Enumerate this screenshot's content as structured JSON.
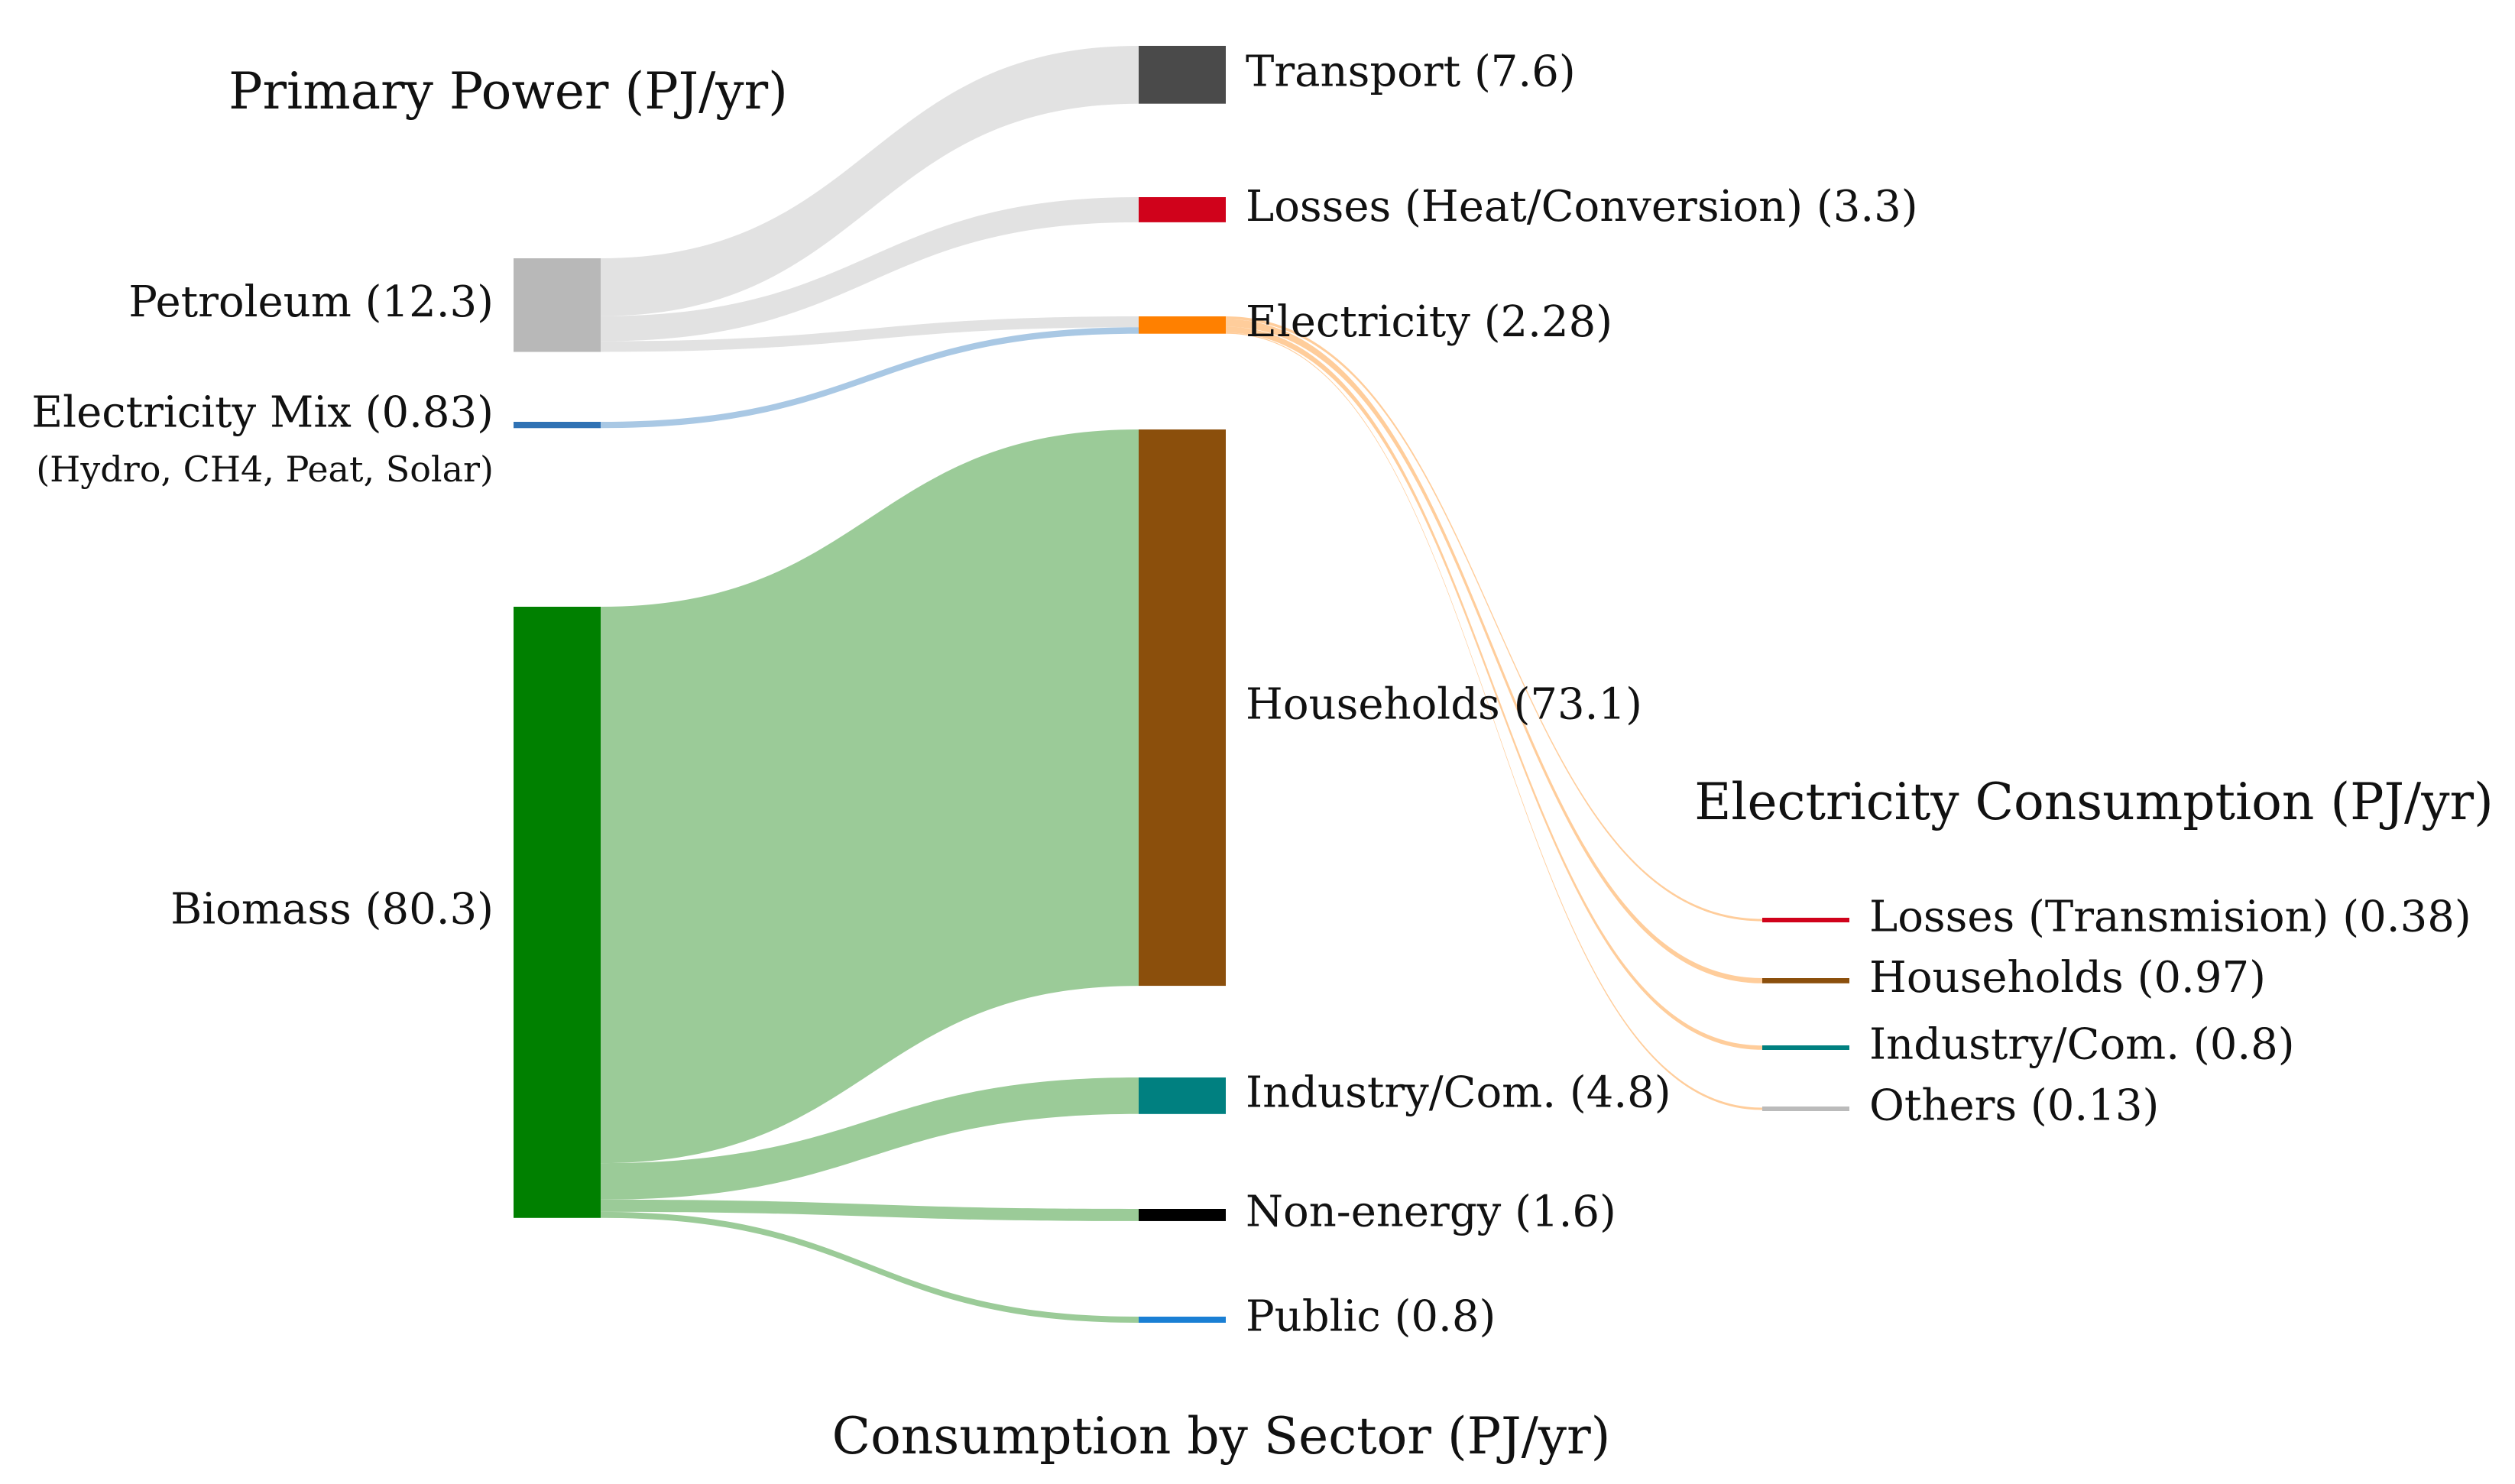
{
  "chart_data": {
    "type": "sankey",
    "units": "PJ/yr",
    "titles": {
      "primary": "Primary Power (PJ/yr)",
      "sector": "Consumption by Sector (PJ/yr)",
      "electricity": "Electricity Consumption (PJ/yr)"
    },
    "sources": [
      {
        "id": "petroleum",
        "label": "Petroleum (12.3)",
        "value": 12.3,
        "color": "#b8b8b8"
      },
      {
        "id": "elecmix",
        "label": "Electricity Mix (0.83)",
        "sublabel": "(Hydro, CH4, Peat, Solar)",
        "value": 0.83,
        "color": "#2f72b4"
      },
      {
        "id": "biomass",
        "label": "Biomass (80.3)",
        "value": 80.3,
        "color": "#008000"
      }
    ],
    "sectors": [
      {
        "id": "transport",
        "label": "Transport (7.6)",
        "value": 7.6,
        "color": "#4a4a4a"
      },
      {
        "id": "losses_heat",
        "label": "Losses (Heat/Conversion) (3.3)",
        "value": 3.3,
        "color": "#d0021b"
      },
      {
        "id": "electricity",
        "label": "Electricity (2.28)",
        "value": 2.28,
        "color": "#ff8000"
      },
      {
        "id": "households",
        "label": "Households (73.1)",
        "value": 73.1,
        "color": "#8b4f0c"
      },
      {
        "id": "industry",
        "label": "Industry/Com. (4.8)",
        "value": 4.8,
        "color": "#008080"
      },
      {
        "id": "nonenergy",
        "label": "Non-energy (1.6)",
        "value": 1.6,
        "color": "#000000"
      },
      {
        "id": "public",
        "label": "Public (0.8)",
        "value": 0.8,
        "color": "#1a7fd4"
      }
    ],
    "electricity_uses": [
      {
        "id": "e_losses",
        "label": "Losses (Transmision) (0.38)",
        "value": 0.38,
        "color": "#d0021b"
      },
      {
        "id": "e_households",
        "label": "Households (0.97)",
        "value": 0.97,
        "color": "#8b4f0c"
      },
      {
        "id": "e_industry",
        "label": "Industry/Com. (0.8)",
        "value": 0.8,
        "color": "#008080"
      },
      {
        "id": "e_others",
        "label": "Others (0.13)",
        "value": 0.13,
        "color": "#bbbbbb"
      }
    ],
    "flows": [
      {
        "from": "petroleum",
        "to": "transport",
        "value": 7.6
      },
      {
        "from": "petroleum",
        "to": "losses_heat",
        "value": 3.3
      },
      {
        "from": "petroleum",
        "to": "electricity",
        "value": 1.4
      },
      {
        "from": "elecmix",
        "to": "electricity",
        "value": 0.83
      },
      {
        "from": "biomass",
        "to": "households",
        "value": 73.1
      },
      {
        "from": "biomass",
        "to": "industry",
        "value": 4.8
      },
      {
        "from": "biomass",
        "to": "nonenergy",
        "value": 1.6
      },
      {
        "from": "biomass",
        "to": "public",
        "value": 0.8
      },
      {
        "from": "electricity",
        "to": "e_losses",
        "value": 0.38
      },
      {
        "from": "electricity",
        "to": "e_households",
        "value": 0.97
      },
      {
        "from": "electricity",
        "to": "e_industry",
        "value": 0.8
      },
      {
        "from": "electricity",
        "to": "e_others",
        "value": 0.13
      }
    ]
  }
}
